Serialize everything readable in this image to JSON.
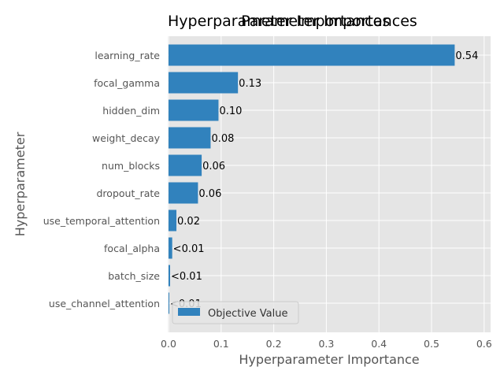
{
  "chart_data": {
    "type": "bar",
    "orientation": "horizontal",
    "title": "Hyperparameter Importances",
    "overlay_title": "Parameter Importances",
    "xlabel": "Hyperparameter Importance",
    "ylabel": "Hyperparameter",
    "xlim": [
      0,
      0.61
    ],
    "xticks": [
      "0.0",
      "0.1",
      "0.2",
      "0.3",
      "0.4",
      "0.5",
      "0.6"
    ],
    "grid": true,
    "legend_position": "bottom-left",
    "bar_color": "#3182bd",
    "categories": [
      "learning_rate",
      "focal_gamma",
      "hidden_dim",
      "weight_decay",
      "num_blocks",
      "dropout_rate",
      "use_temporal_attention",
      "focal_alpha",
      "batch_size",
      "use_channel_attention"
    ],
    "series": [
      {
        "name": "Objective Value",
        "values": [
          0.544,
          0.132,
          0.095,
          0.08,
          0.063,
          0.056,
          0.015,
          0.007,
          0.003,
          0.0005
        ],
        "labels": [
          "0.54",
          "0.13",
          "0.10",
          "0.08",
          "0.06",
          "0.06",
          "0.02",
          "<0.01",
          "<0.01",
          "<0.01"
        ]
      }
    ]
  }
}
